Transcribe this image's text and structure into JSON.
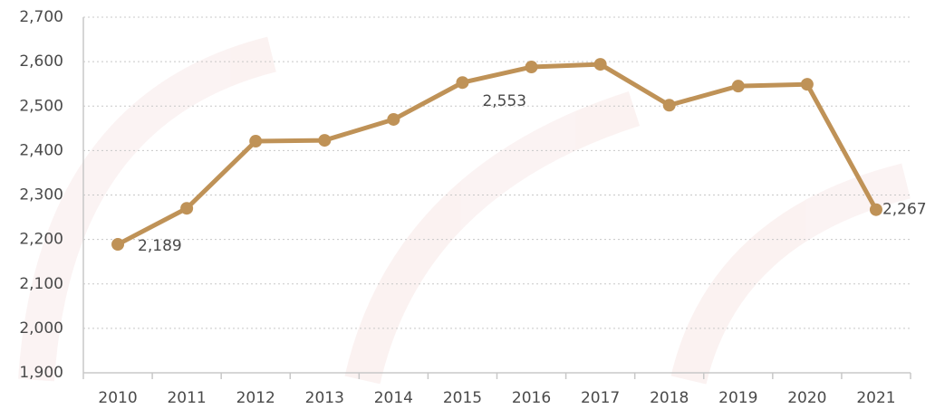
{
  "chart_data": {
    "type": "line",
    "categories": [
      "2010",
      "2011",
      "2012",
      "2013",
      "2014",
      "2015",
      "2016",
      "2017",
      "2018",
      "2019",
      "2020",
      "2021"
    ],
    "series": [
      {
        "color": "#bf9257",
        "values": [
          2189,
          2270,
          2421,
          2423,
          2470,
          2553,
          2588,
          2594,
          2502,
          2545,
          2549,
          2267
        ],
        "value_labels": [
          "2,189",
          null,
          null,
          null,
          null,
          "2,553",
          null,
          null,
          null,
          null,
          null,
          "2,267"
        ]
      }
    ],
    "ylim": [
      1900,
      2700
    ],
    "yticks": [
      {
        "value": 1900,
        "label": "1,900"
      },
      {
        "value": 2000,
        "label": "2,000"
      },
      {
        "value": 2100,
        "label": "2,100"
      },
      {
        "value": 2200,
        "label": "2,200"
      },
      {
        "value": 2300,
        "label": "2,300"
      },
      {
        "value": 2400,
        "label": "2,400"
      },
      {
        "value": 2500,
        "label": "2,500"
      },
      {
        "value": 2600,
        "label": "2,600"
      },
      {
        "value": 2700,
        "label": "2,700"
      }
    ],
    "grid": true
  }
}
